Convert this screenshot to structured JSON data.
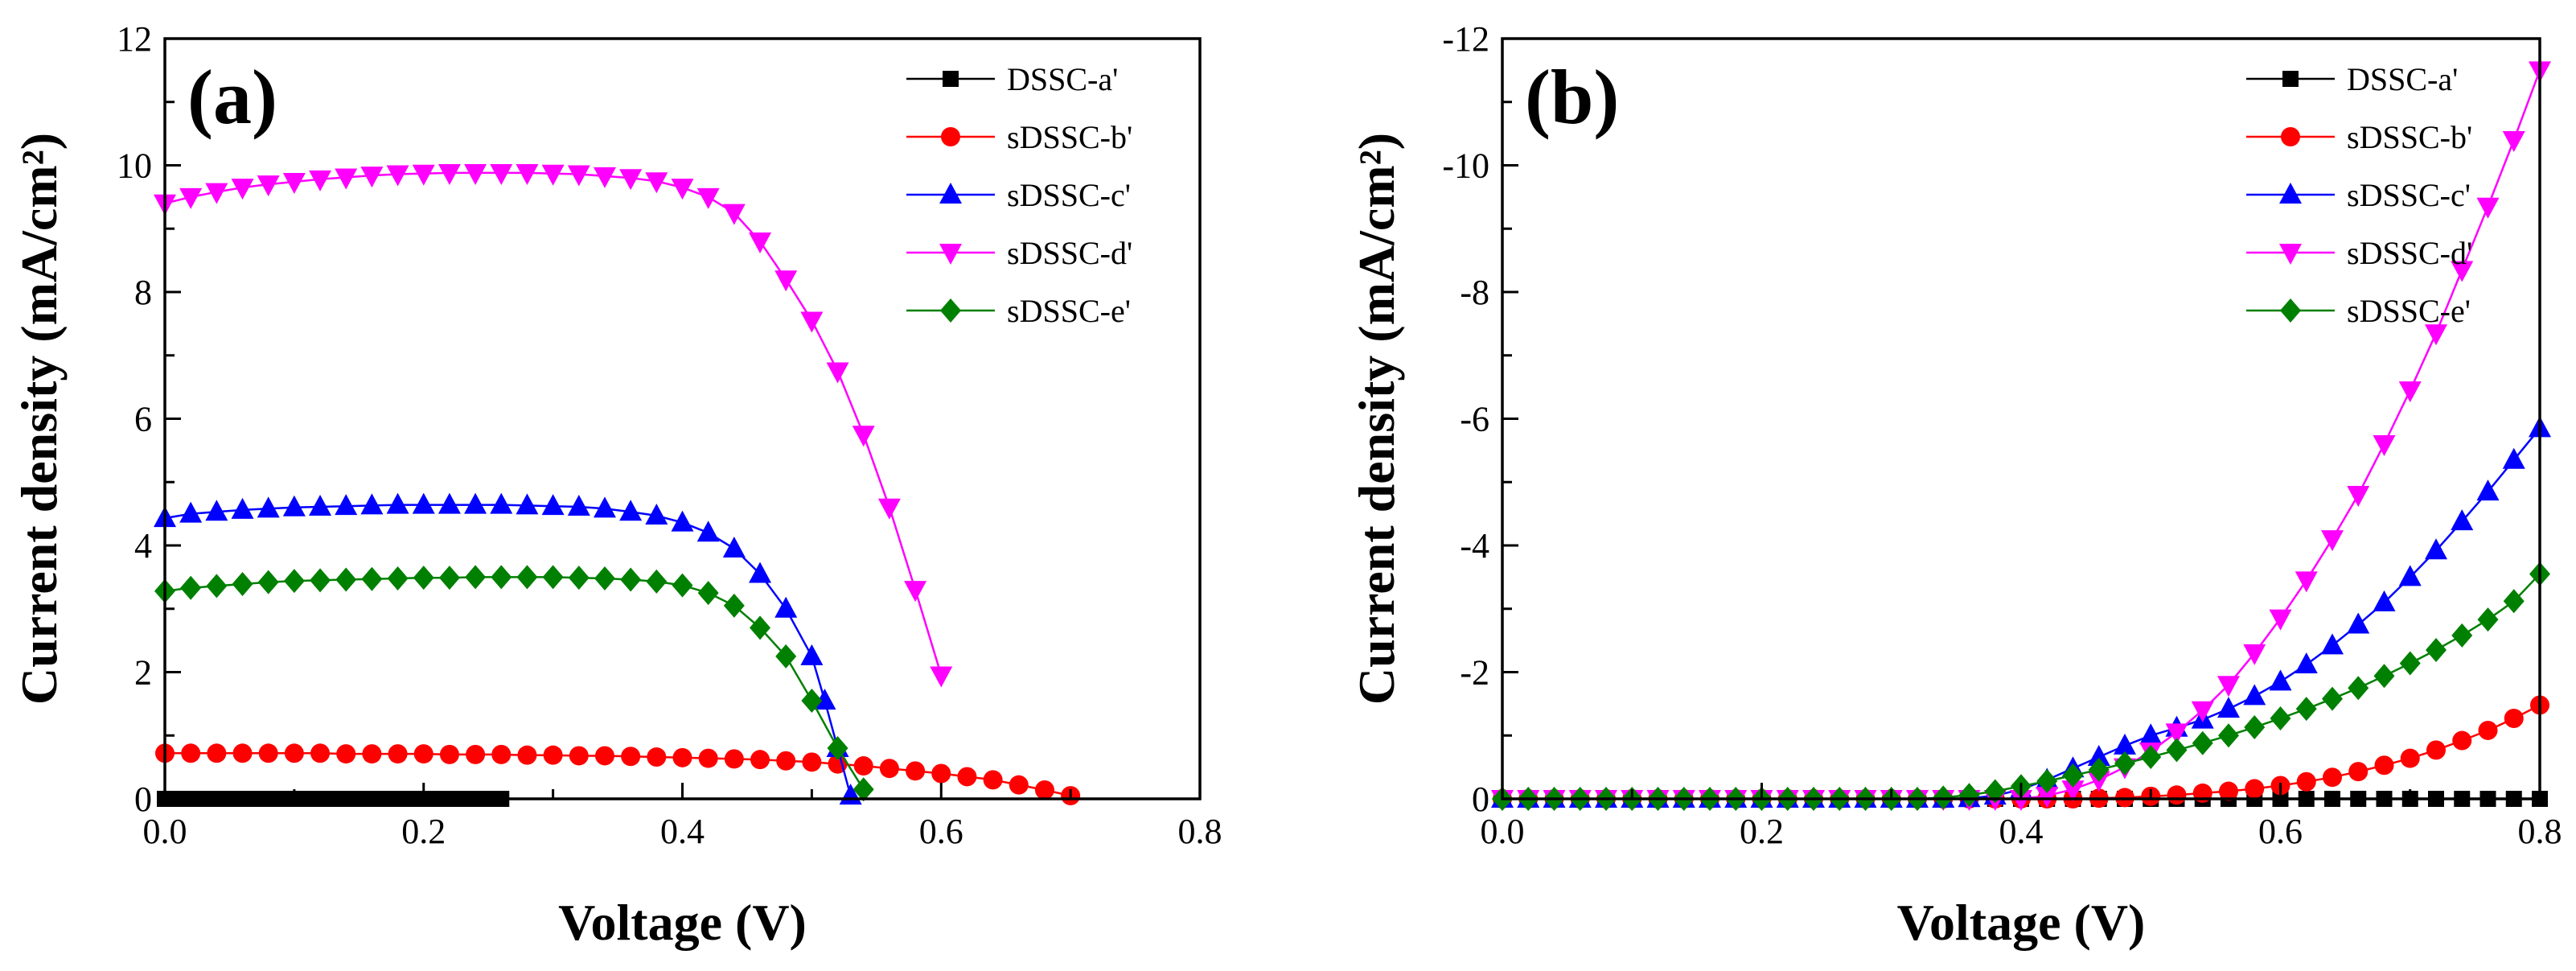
{
  "colors": {
    "DSSC-a'": "#000000",
    "sDSSC-b'": "#ff0000",
    "sDSSC-c'": "#0000ff",
    "sDSSC-d'": "#ff00ff",
    "sDSSC-e'": "#008000"
  },
  "chart_data": [
    {
      "type": "line",
      "panel_label": "(a)",
      "xlabel": "Voltage (V)",
      "ylabel": "Current density (mA/cm²)",
      "xlim": [
        0,
        0.8
      ],
      "ylim": [
        0,
        12
      ],
      "x_ticks": [
        0.0,
        0.2,
        0.4,
        0.6,
        0.8
      ],
      "x_tick_labels": [
        "0.0",
        "0.2",
        "0.4",
        "0.6",
        "0.8"
      ],
      "y_ticks": [
        0,
        2,
        4,
        6,
        8,
        10,
        12
      ],
      "y_tick_labels": [
        "0",
        "2",
        "4",
        "6",
        "8",
        "10",
        "12"
      ],
      "legend_position": "top-right",
      "series": [
        {
          "name": "DSSC-a'",
          "marker": "square",
          "color": "#000000",
          "x": [
            0.0,
            0.01,
            0.02,
            0.03,
            0.04,
            0.05,
            0.06,
            0.07,
            0.08,
            0.09,
            0.1,
            0.11,
            0.12,
            0.13,
            0.14,
            0.15,
            0.16,
            0.17,
            0.18,
            0.19,
            0.2,
            0.21,
            0.22,
            0.23,
            0.24,
            0.25,
            0.26
          ],
          "y": [
            0,
            0,
            0,
            0,
            0,
            0,
            0,
            0,
            0,
            0,
            0,
            0,
            0,
            0,
            0,
            0,
            0,
            0,
            0,
            0,
            0,
            0,
            0,
            0,
            0,
            0,
            0
          ]
        },
        {
          "name": "sDSSC-b'",
          "marker": "circle",
          "color": "#ff0000",
          "x": [
            0.0,
            0.02,
            0.04,
            0.06,
            0.08,
            0.1,
            0.12,
            0.14,
            0.16,
            0.18,
            0.2,
            0.22,
            0.24,
            0.26,
            0.28,
            0.3,
            0.32,
            0.34,
            0.36,
            0.38,
            0.4,
            0.42,
            0.44,
            0.46,
            0.48,
            0.5,
            0.52,
            0.54,
            0.56,
            0.58,
            0.6,
            0.62,
            0.64,
            0.66,
            0.68,
            0.7
          ],
          "y": [
            0.72,
            0.72,
            0.72,
            0.72,
            0.72,
            0.72,
            0.72,
            0.71,
            0.71,
            0.71,
            0.71,
            0.7,
            0.7,
            0.7,
            0.69,
            0.69,
            0.68,
            0.68,
            0.67,
            0.66,
            0.65,
            0.64,
            0.63,
            0.62,
            0.6,
            0.58,
            0.55,
            0.52,
            0.48,
            0.44,
            0.4,
            0.35,
            0.3,
            0.22,
            0.14,
            0.05
          ]
        },
        {
          "name": "sDSSC-c'",
          "marker": "triangle-up",
          "color": "#0000ff",
          "x": [
            0.0,
            0.02,
            0.04,
            0.06,
            0.08,
            0.1,
            0.12,
            0.14,
            0.16,
            0.18,
            0.2,
            0.22,
            0.24,
            0.26,
            0.28,
            0.3,
            0.32,
            0.34,
            0.36,
            0.38,
            0.4,
            0.42,
            0.44,
            0.46,
            0.48,
            0.5,
            0.51,
            0.52,
            0.53
          ],
          "y": [
            4.43,
            4.5,
            4.53,
            4.56,
            4.58,
            4.6,
            4.61,
            4.62,
            4.63,
            4.64,
            4.64,
            4.64,
            4.64,
            4.64,
            4.63,
            4.62,
            4.61,
            4.58,
            4.53,
            4.47,
            4.36,
            4.2,
            3.95,
            3.55,
            3.0,
            2.25,
            1.55,
            0.8,
            0.05
          ]
        },
        {
          "name": "sDSSC-d'",
          "marker": "triangle-down",
          "color": "#ff00ff",
          "x": [
            0.0,
            0.02,
            0.04,
            0.06,
            0.08,
            0.1,
            0.12,
            0.14,
            0.16,
            0.18,
            0.2,
            0.22,
            0.24,
            0.26,
            0.28,
            0.3,
            0.32,
            0.34,
            0.36,
            0.38,
            0.4,
            0.42,
            0.44,
            0.46,
            0.48,
            0.5,
            0.52,
            0.54,
            0.56,
            0.58,
            0.6
          ],
          "y": [
            9.4,
            9.5,
            9.58,
            9.65,
            9.7,
            9.74,
            9.78,
            9.81,
            9.84,
            9.86,
            9.87,
            9.88,
            9.88,
            9.88,
            9.88,
            9.87,
            9.86,
            9.83,
            9.8,
            9.75,
            9.65,
            9.5,
            9.25,
            8.8,
            8.2,
            7.55,
            6.75,
            5.75,
            4.6,
            3.3,
            1.95
          ]
        },
        {
          "name": "sDSSC-e'",
          "marker": "diamond",
          "color": "#008000",
          "x": [
            0.0,
            0.02,
            0.04,
            0.06,
            0.08,
            0.1,
            0.12,
            0.14,
            0.16,
            0.18,
            0.2,
            0.22,
            0.24,
            0.26,
            0.28,
            0.3,
            0.32,
            0.34,
            0.36,
            0.38,
            0.4,
            0.42,
            0.44,
            0.46,
            0.48,
            0.5,
            0.52,
            0.54
          ],
          "y": [
            3.28,
            3.33,
            3.36,
            3.39,
            3.42,
            3.44,
            3.45,
            3.46,
            3.47,
            3.48,
            3.49,
            3.49,
            3.5,
            3.5,
            3.5,
            3.5,
            3.49,
            3.48,
            3.46,
            3.43,
            3.37,
            3.25,
            3.05,
            2.7,
            2.25,
            1.55,
            0.8,
            0.15
          ]
        }
      ]
    },
    {
      "type": "line",
      "panel_label": "(b)",
      "xlabel": "Voltage (V)",
      "ylabel": "Current density (mA/cm²)",
      "xlim": [
        0,
        0.8
      ],
      "ylim": [
        0,
        -12
      ],
      "x_ticks": [
        0.0,
        0.2,
        0.4,
        0.6,
        0.8
      ],
      "x_tick_labels": [
        "0.0",
        "0.2",
        "0.4",
        "0.6",
        "0.8"
      ],
      "y_ticks": [
        0,
        -2,
        -4,
        -6,
        -8,
        -10,
        -12
      ],
      "y_tick_labels": [
        "0",
        "-2",
        "-4",
        "-6",
        "-8",
        "-10",
        "-12"
      ],
      "legend_position": "top-right",
      "series": [
        {
          "name": "DSSC-a'",
          "marker": "square",
          "color": "#000000",
          "x": [
            0.0,
            0.02,
            0.04,
            0.06,
            0.08,
            0.1,
            0.12,
            0.14,
            0.16,
            0.18,
            0.2,
            0.22,
            0.24,
            0.26,
            0.28,
            0.3,
            0.32,
            0.34,
            0.36,
            0.38,
            0.4,
            0.42,
            0.44,
            0.46,
            0.48,
            0.5,
            0.52,
            0.54,
            0.56,
            0.58,
            0.6,
            0.62,
            0.64,
            0.66,
            0.68,
            0.7,
            0.72,
            0.74,
            0.76,
            0.78,
            0.8
          ],
          "y": [
            0,
            0,
            0,
            0,
            0,
            0,
            0,
            0,
            0,
            0,
            0,
            0,
            0,
            0,
            0,
            0,
            0,
            0,
            0,
            0,
            0,
            0,
            0,
            0,
            0,
            0,
            0,
            0,
            0,
            0,
            0,
            0,
            0,
            0,
            0,
            0,
            0,
            0,
            0,
            0,
            0
          ]
        },
        {
          "name": "sDSSC-b'",
          "marker": "circle",
          "color": "#ff0000",
          "x": [
            0.0,
            0.02,
            0.04,
            0.06,
            0.08,
            0.1,
            0.12,
            0.14,
            0.16,
            0.18,
            0.2,
            0.22,
            0.24,
            0.26,
            0.28,
            0.3,
            0.32,
            0.34,
            0.36,
            0.38,
            0.4,
            0.42,
            0.44,
            0.46,
            0.48,
            0.5,
            0.52,
            0.54,
            0.56,
            0.58,
            0.6,
            0.62,
            0.64,
            0.66,
            0.68,
            0.7,
            0.72,
            0.74,
            0.76,
            0.78,
            0.8
          ],
          "y": [
            0,
            0,
            0,
            0,
            0,
            0,
            0,
            0,
            0,
            0,
            0,
            0,
            0,
            0,
            0,
            0,
            0,
            0,
            0,
            0,
            0,
            0,
            0,
            -0.01,
            -0.02,
            -0.04,
            -0.06,
            -0.09,
            -0.12,
            -0.16,
            -0.21,
            -0.27,
            -0.34,
            -0.43,
            -0.53,
            -0.64,
            -0.77,
            -0.92,
            -1.08,
            -1.27,
            -1.48
          ]
        },
        {
          "name": "sDSSC-c'",
          "marker": "triangle-up",
          "color": "#0000ff",
          "x": [
            0.0,
            0.02,
            0.04,
            0.06,
            0.08,
            0.1,
            0.12,
            0.14,
            0.16,
            0.18,
            0.2,
            0.22,
            0.24,
            0.26,
            0.28,
            0.3,
            0.32,
            0.34,
            0.36,
            0.38,
            0.4,
            0.42,
            0.44,
            0.46,
            0.48,
            0.5,
            0.52,
            0.54,
            0.56,
            0.58,
            0.6,
            0.62,
            0.64,
            0.66,
            0.68,
            0.7,
            0.72,
            0.74,
            0.76,
            0.78,
            0.8
          ],
          "y": [
            0,
            0,
            0,
            0,
            0,
            0,
            0,
            0,
            0,
            0,
            0,
            0,
            0,
            0,
            0,
            0,
            0,
            0,
            -0.01,
            -0.05,
            -0.15,
            -0.3,
            -0.48,
            -0.66,
            -0.84,
            -1.0,
            -1.12,
            -1.25,
            -1.42,
            -1.62,
            -1.85,
            -2.12,
            -2.42,
            -2.75,
            -3.1,
            -3.5,
            -3.92,
            -4.38,
            -4.85,
            -5.35,
            -5.85
          ]
        },
        {
          "name": "sDSSC-d'",
          "marker": "triangle-down",
          "color": "#ff00ff",
          "x": [
            0.0,
            0.02,
            0.04,
            0.06,
            0.08,
            0.1,
            0.12,
            0.14,
            0.16,
            0.18,
            0.2,
            0.22,
            0.24,
            0.26,
            0.28,
            0.3,
            0.32,
            0.34,
            0.36,
            0.38,
            0.4,
            0.42,
            0.44,
            0.46,
            0.48,
            0.5,
            0.52,
            0.54,
            0.56,
            0.58,
            0.6,
            0.62,
            0.64,
            0.66,
            0.68,
            0.7,
            0.72,
            0.74,
            0.76,
            0.78,
            0.8
          ],
          "y": [
            0,
            0,
            0,
            0,
            0,
            0,
            0,
            0,
            0,
            0,
            0,
            0,
            0,
            0,
            0,
            0,
            0,
            0,
            0,
            0,
            0,
            -0.05,
            -0.15,
            -0.3,
            -0.5,
            -0.75,
            -1.05,
            -1.4,
            -1.8,
            -2.3,
            -2.85,
            -3.45,
            -4.1,
            -4.8,
            -5.6,
            -6.45,
            -7.35,
            -8.35,
            -9.35,
            -10.4,
            -11.5
          ]
        },
        {
          "name": "sDSSC-e'",
          "marker": "diamond",
          "color": "#008000",
          "x": [
            0.0,
            0.02,
            0.04,
            0.06,
            0.08,
            0.1,
            0.12,
            0.14,
            0.16,
            0.18,
            0.2,
            0.22,
            0.24,
            0.26,
            0.28,
            0.3,
            0.32,
            0.34,
            0.36,
            0.38,
            0.4,
            0.42,
            0.44,
            0.46,
            0.48,
            0.5,
            0.52,
            0.54,
            0.56,
            0.58,
            0.6,
            0.62,
            0.64,
            0.66,
            0.68,
            0.7,
            0.72,
            0.74,
            0.76,
            0.78,
            0.8
          ],
          "y": [
            0,
            0,
            0,
            0,
            0,
            0,
            0,
            0,
            0,
            0,
            0,
            0,
            0,
            0,
            0,
            0,
            0,
            -0.02,
            -0.06,
            -0.12,
            -0.2,
            -0.28,
            -0.37,
            -0.46,
            -0.56,
            -0.66,
            -0.77,
            -0.88,
            -1.0,
            -1.13,
            -1.27,
            -1.42,
            -1.58,
            -1.75,
            -1.94,
            -2.14,
            -2.35,
            -2.58,
            -2.83,
            -3.12,
            -3.55
          ]
        }
      ]
    }
  ]
}
